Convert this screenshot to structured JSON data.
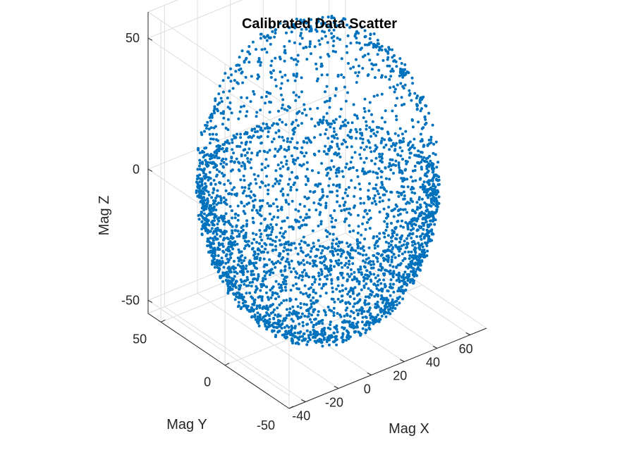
{
  "chart_data": {
    "type": "scatter",
    "title": "Calibrated Data Scatter",
    "xlabel": "Mag X",
    "ylabel": "Mag Y",
    "zlabel": "Mag Z",
    "xlim": [
      -50,
      70
    ],
    "ylim": [
      -50,
      60
    ],
    "zlim": [
      -55,
      60
    ],
    "xticks": [
      "-40",
      "-20",
      "0",
      "20",
      "40",
      "60"
    ],
    "yticks": [
      "-50",
      "0",
      "50"
    ],
    "zticks": [
      "-50",
      "0",
      "50"
    ],
    "grid": true,
    "view": "3-D isometric",
    "marker_color": "#0072BD",
    "sphere": {
      "center": [
        8,
        2,
        0
      ],
      "radius": 57,
      "dense_below_z": 0
    }
  }
}
